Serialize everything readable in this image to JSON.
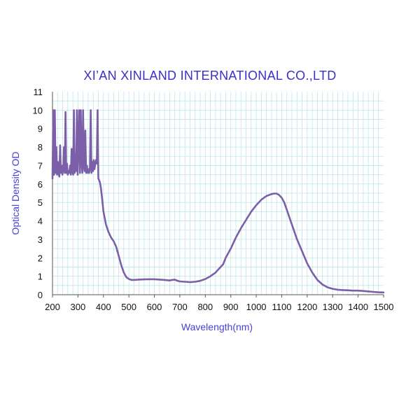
{
  "chart_data": {
    "type": "line",
    "title": "XI’AN XINLAND INTERNATIONAL CO.,LTD",
    "xlabel": "Wavelength(nm)",
    "ylabel": "Optical Density OD",
    "xlim": [
      200,
      1500
    ],
    "ylim": [
      0,
      11
    ],
    "xticks": [
      200,
      300,
      400,
      500,
      600,
      700,
      800,
      900,
      1000,
      1100,
      1200,
      1300,
      1400,
      1500
    ],
    "yticks": [
      0,
      1,
      2,
      3,
      4,
      5,
      6,
      7,
      8,
      9,
      10,
      11
    ],
    "grid": true,
    "line_color": "#7b5fa8",
    "series": [
      {
        "x": [
          200,
          203,
          206,
          209,
          212,
          215,
          218,
          221,
          224,
          227,
          230,
          233,
          236,
          239,
          242,
          245,
          248,
          251,
          254,
          257,
          260,
          263,
          266,
          269,
          272,
          275,
          278,
          281,
          284,
          287,
          290,
          293,
          296,
          299,
          302,
          305,
          308,
          311,
          314,
          317,
          320,
          323,
          326,
          329,
          332,
          335,
          338,
          341,
          344,
          347,
          350,
          353,
          356,
          359,
          362,
          365,
          368,
          371,
          374,
          377,
          380,
          383,
          386,
          390,
          395,
          400,
          410,
          420,
          430,
          440,
          450,
          460,
          470,
          480,
          490,
          500,
          510,
          520,
          540,
          560,
          580,
          600,
          620,
          640,
          660,
          670,
          680,
          690,
          700,
          720,
          740,
          760,
          780,
          800,
          820,
          840,
          850,
          860,
          870,
          880,
          900,
          920,
          940,
          960,
          980,
          1000,
          1020,
          1040,
          1060,
          1070,
          1080,
          1090,
          1100,
          1110,
          1120,
          1140,
          1160,
          1180,
          1200,
          1220,
          1240,
          1260,
          1280,
          1300,
          1320,
          1340,
          1360,
          1380,
          1400,
          1420,
          1440,
          1460,
          1480,
          1500
        ],
        "values": [
          6.3,
          10,
          6.5,
          10,
          6.6,
          8,
          6.5,
          7.2,
          6.6,
          6.4,
          8.1,
          6.6,
          7,
          6.5,
          6.8,
          8,
          6.6,
          9.9,
          6.6,
          7.1,
          6.5,
          6.7,
          6.6,
          7,
          6.5,
          7.9,
          6.7,
          6.5,
          10,
          6.6,
          7.6,
          6.7,
          10,
          6.5,
          8.3,
          10,
          6.6,
          10,
          7.3,
          6.6,
          10,
          7,
          6.7,
          8.9,
          6.6,
          7,
          6.6,
          6.8,
          6.6,
          6.9,
          10,
          6.6,
          7.2,
          6.7,
          7.3,
          6.8,
          7.1,
          7.3,
          7.1,
          10,
          6.3,
          6.2,
          6.1,
          5.8,
          5.2,
          4.5,
          3.8,
          3.4,
          3.1,
          2.9,
          2.6,
          2.1,
          1.6,
          1.2,
          0.95,
          0.85,
          0.8,
          0.8,
          0.82,
          0.83,
          0.84,
          0.84,
          0.82,
          0.8,
          0.77,
          0.8,
          0.82,
          0.76,
          0.72,
          0.7,
          0.68,
          0.7,
          0.75,
          0.85,
          1,
          1.2,
          1.35,
          1.5,
          1.65,
          2,
          2.5,
          3.1,
          3.6,
          4.05,
          4.5,
          4.85,
          5.15,
          5.35,
          5.45,
          5.48,
          5.48,
          5.4,
          5.25,
          5,
          4.6,
          3.8,
          3,
          2.35,
          1.7,
          1.2,
          0.8,
          0.55,
          0.4,
          0.32,
          0.27,
          0.25,
          0.24,
          0.22,
          0.22,
          0.2,
          0.18,
          0.15,
          0.13,
          0.12
        ]
      }
    ]
  }
}
